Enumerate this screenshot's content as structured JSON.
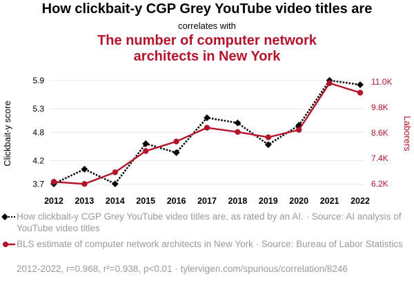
{
  "title": "How clickbait-y CGP Grey YouTube video titles are",
  "subtitle": "correlates with",
  "title2_line1": "The number of computer network",
  "title2_line2": "architects in New York",
  "legend": [
    {
      "text": "How clickbait-y CGP Grey YouTube video titles are, as rated by an AI. · Source: AI analysis of YouTube video titles"
    },
    {
      "text": "BLS estimate of computer network architects in New York · Source: Bureau of Labor Statistics"
    }
  ],
  "footer": "2012-2022, r=0.968, r²=0.938, p<0.01 · tylervigen.com/spurious/correlation/8246",
  "chart_data": {
    "type": "line",
    "x": [
      2012,
      2013,
      2014,
      2015,
      2016,
      2017,
      2018,
      2019,
      2020,
      2021,
      2022
    ],
    "ylabel": "Clickbait-y score",
    "y2label": "Laborers",
    "ylim": [
      3.55,
      6.0
    ],
    "y_ticks": [
      "3.7",
      "4.2",
      "4.8",
      "5.3",
      "5.9"
    ],
    "y_tick_values": [
      3.7,
      4.2,
      4.8,
      5.3,
      5.9
    ],
    "y2lim": [
      5850,
      11300
    ],
    "y2_ticks": [
      "6.2K",
      "7.4K",
      "8.6K",
      "9.8K",
      "11.0K"
    ],
    "y2_tick_values": [
      6200,
      7400,
      8600,
      9800,
      11000
    ],
    "grid": true,
    "series": [
      {
        "values": [
          3.71,
          4.02,
          3.71,
          4.56,
          4.37,
          5.11,
          5.0,
          4.54,
          4.95,
          5.9,
          5.81
        ],
        "color": "#000000",
        "axis": "left",
        "style": "dotted",
        "marker": "diamond"
      },
      {
        "values": [
          6300,
          6200,
          6750,
          7750,
          8200,
          8850,
          8650,
          8400,
          8750,
          10950,
          10500
        ],
        "color": "#b5122b",
        "axis": "right",
        "style": "solid",
        "marker": "circle"
      }
    ]
  }
}
